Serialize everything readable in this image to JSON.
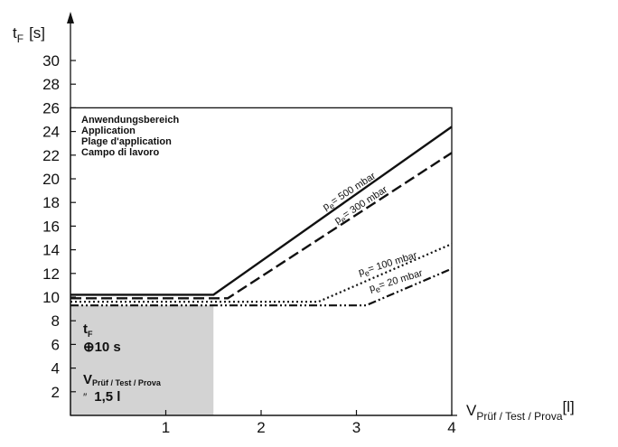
{
  "chart_data": {
    "type": "line",
    "ylabel_main": "t",
    "ylabel_sub": "F",
    "ylabel_unit": "[s]",
    "xlabel_main": "V",
    "xlabel_sub": "Prüf / Test / Prova",
    "xlabel_unit": "[l]",
    "xlim": [
      0,
      4
    ],
    "ylim": [
      0,
      32
    ],
    "x_ticks": [
      "1",
      "2",
      "3",
      "4"
    ],
    "x_tick_values": [
      1,
      2,
      3,
      4
    ],
    "y_ticks": [
      "2",
      "4",
      "6",
      "8",
      "10",
      "12",
      "14",
      "16",
      "18",
      "20",
      "22",
      "24",
      "26",
      "28",
      "30"
    ],
    "y_tick_values": [
      2,
      4,
      6,
      8,
      10,
      12,
      14,
      16,
      18,
      20,
      22,
      24,
      26,
      28,
      30
    ],
    "application_area": {
      "x": [
        0,
        4
      ],
      "y": [
        0,
        26
      ],
      "labels": [
        "Anwendungsbereich",
        "Application",
        "Plage d'application",
        "Campo di lavoro"
      ]
    },
    "shaded_area": {
      "x": [
        0,
        1.5
      ],
      "y": [
        0,
        9.3
      ],
      "color": "#d3d3d3"
    },
    "series": [
      {
        "name": "p",
        "name_sub": "e",
        "name_rest": "= 500 mbar",
        "style": "solid",
        "x": [
          0,
          1.5,
          4
        ],
        "y": [
          10.2,
          10.2,
          24.4
        ]
      },
      {
        "name": "p",
        "name_sub": "e",
        "name_rest": "= 300 mbar",
        "style": "dashed",
        "x": [
          0,
          1.65,
          4
        ],
        "y": [
          9.9,
          9.9,
          22.2
        ]
      },
      {
        "name": "p",
        "name_sub": "e",
        "name_rest": "= 100 mbar",
        "style": "dotted",
        "x": [
          0,
          2.6,
          4
        ],
        "y": [
          9.6,
          9.6,
          14.5
        ]
      },
      {
        "name": "p",
        "name_sub": "e",
        "name_rest": "= 20 mbar",
        "style": "dashdot",
        "x": [
          0,
          3.1,
          4
        ],
        "y": [
          9.3,
          9.3,
          12.4
        ]
      }
    ],
    "box_text": {
      "t_main": "t",
      "t_sub": "F",
      "t_value": "⊕10 s",
      "v_main": "V",
      "v_sub": "Prüf / Test / Prova",
      "v_prefix": "″",
      "v_value": "1,5 l"
    },
    "grid": false,
    "legend": "none"
  }
}
